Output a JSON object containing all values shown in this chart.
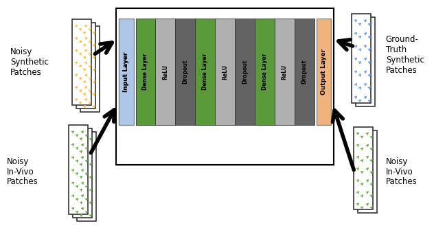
{
  "fig_width": 6.32,
  "fig_height": 3.32,
  "bg_color": "#ffffff",
  "input_layer_color": "#aec6e8",
  "output_layer_color": "#f0b37e",
  "layer_labels": [
    "Dense Layer",
    "ReLU",
    "Dropout",
    "Dense Layer",
    "ReLU",
    "Dropout",
    "Dense Layer",
    "ReLU",
    "Dropout"
  ],
  "layer_colors": [
    "#5a9a3a",
    "#b0b0b0",
    "#636363",
    "#5a9a3a",
    "#b0b0b0",
    "#636363",
    "#5a9a3a",
    "#b0b0b0",
    "#636363"
  ],
  "noisy_synth_label": "Noisy\nSynthetic\nPatches",
  "noisy_invivo_left_label": "Noisy\nIn-Vivo\nPatches",
  "gt_synth_label": "Ground-\nTruth\nSynthetic\nPatches",
  "noisy_invivo_right_label": "Noisy\nIn-Vivo\nPatches",
  "orange_patch_color": "#f5c040",
  "blue_patch_color": "#6699dd",
  "green_patch_color": "#66aa44"
}
